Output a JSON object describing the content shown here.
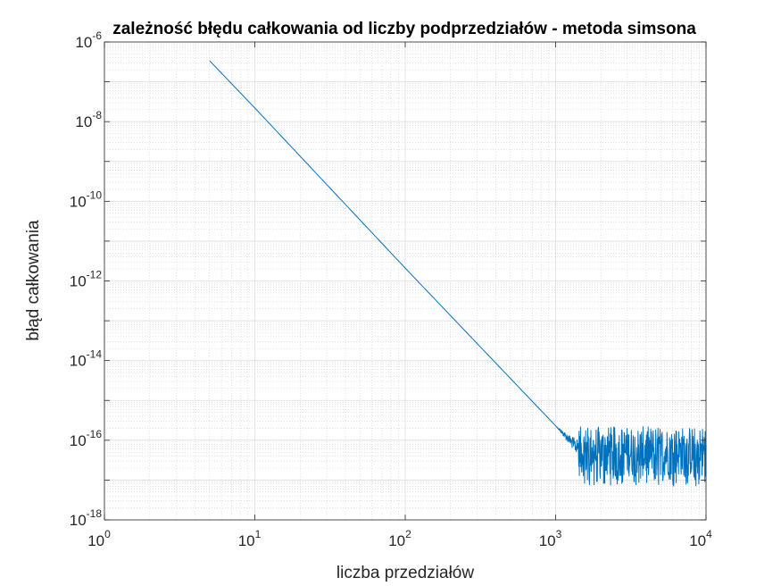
{
  "chart_data": {
    "type": "line",
    "title": "zależność błędu całkowania od liczby podprzedziałów - metoda simsona",
    "xlabel": "liczba przedziałów",
    "ylabel": "błąd całkowania",
    "xscale": "log",
    "yscale": "log",
    "xlim": [
      1,
      10000
    ],
    "ylim": [
      1e-18,
      1e-06
    ],
    "x_ticks": [
      {
        "base": "10",
        "exp": "0"
      },
      {
        "base": "10",
        "exp": "1"
      },
      {
        "base": "10",
        "exp": "2"
      },
      {
        "base": "10",
        "exp": "3"
      },
      {
        "base": "10",
        "exp": "4"
      }
    ],
    "y_ticks": [
      {
        "base": "10",
        "exp": "-18"
      },
      {
        "base": "10",
        "exp": "-16"
      },
      {
        "base": "10",
        "exp": "-14"
      },
      {
        "base": "10",
        "exp": "-12"
      },
      {
        "base": "10",
        "exp": "-10"
      },
      {
        "base": "10",
        "exp": "-8"
      },
      {
        "base": "10",
        "exp": "-6"
      }
    ],
    "grid": true,
    "minor_grid": true,
    "series": [
      {
        "color": "#0072BD",
        "trend": {
          "x": [
            5,
            10,
            100,
            1000
          ],
          "y": [
            3.4e-07,
            2.2e-08,
            2.1e-12,
            2.3e-16
          ],
          "comment_free_note": ""
        },
        "noise": {
          "x_start": 1000,
          "x_end": 10000,
          "y_min": 7e-18,
          "y_max": 2.2e-16
        }
      }
    ]
  }
}
